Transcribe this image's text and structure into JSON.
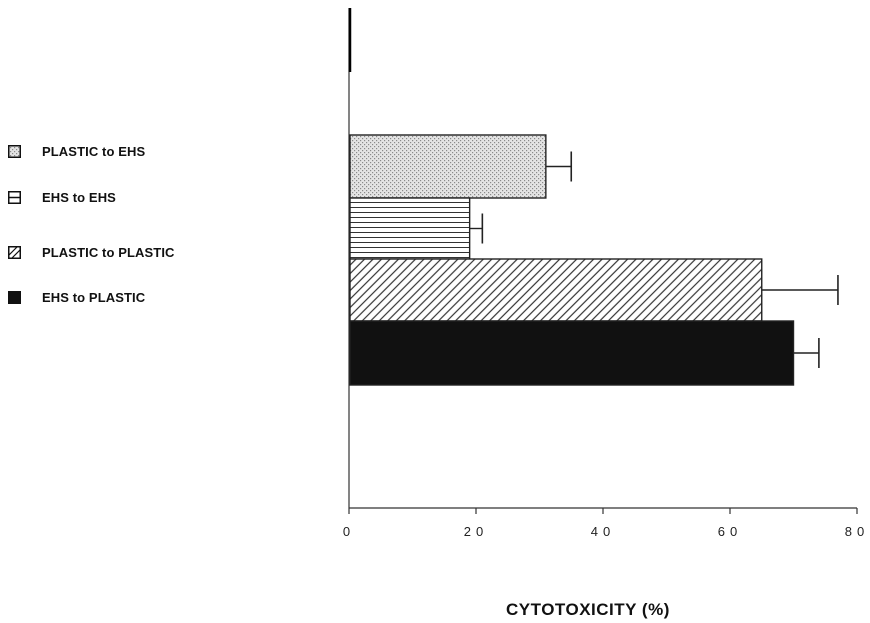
{
  "chart_data": {
    "type": "bar",
    "orientation": "horizontal",
    "xlabel": "CYTOTOXICITY  (%)",
    "xlim": [
      0,
      80
    ],
    "x_ticks": [
      "0",
      "20",
      "40",
      "60",
      "80"
    ],
    "grid": false,
    "legend_placement": "left",
    "series": [
      {
        "name": "PLASTIC to EHS",
        "value": 31,
        "error": 4,
        "pattern": "stipple"
      },
      {
        "name": "EHS to EHS",
        "value": 19,
        "error": 2,
        "pattern": "horizontal-lines"
      },
      {
        "name": "PLASTIC to PLASTIC",
        "value": 65,
        "error": 12,
        "pattern": "diagonal-hatch"
      },
      {
        "name": "EHS to PLASTIC",
        "value": 70,
        "error": 4,
        "pattern": "solid-black"
      }
    ]
  }
}
